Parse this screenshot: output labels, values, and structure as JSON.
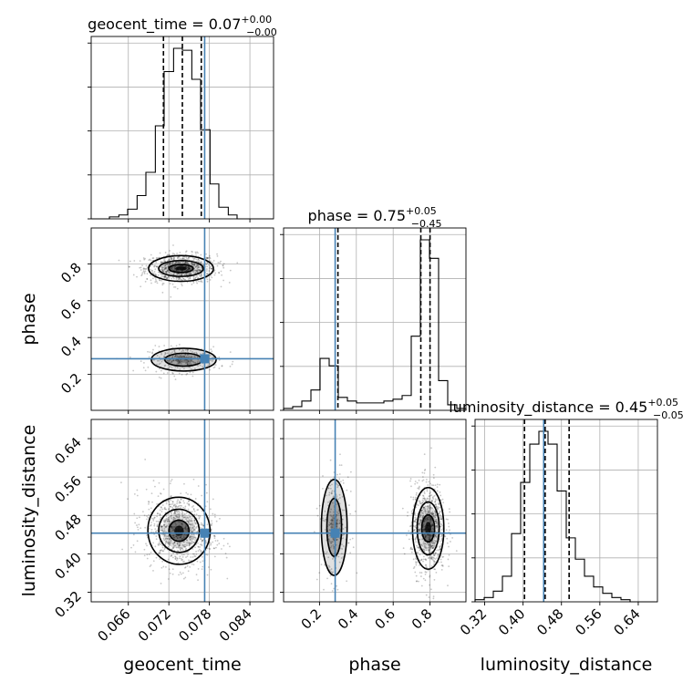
{
  "chart_data": {
    "type": "corner",
    "parameters": [
      {
        "name": "geocent_time",
        "title_main": "geocent_time = 0.07",
        "title_plus": "+0.00",
        "title_minus": "−0.00",
        "range": [
          0.0605,
          0.0875
        ],
        "ticks": [
          0.066,
          0.072,
          0.078,
          0.084
        ],
        "tick_labels": [
          "0.066",
          "0.072",
          "0.078",
          "0.084"
        ],
        "truth": 0.0773,
        "quantiles": [
          0.0712,
          0.074,
          0.0768
        ]
      },
      {
        "name": "phase",
        "title_main": "phase = 0.75",
        "title_plus": "+0.05",
        "title_minus": "−0.45",
        "range": [
          0.005,
          0.995
        ],
        "ticks": [
          0.2,
          0.4,
          0.6,
          0.8
        ],
        "tick_labels": [
          "0.2",
          "0.4",
          "0.6",
          "0.8"
        ],
        "truth": 0.285,
        "quantiles": [
          0.3,
          0.75,
          0.8
        ]
      },
      {
        "name": "luminosity_distance",
        "title_main": "luminosity_distance = 0.45",
        "title_plus": "+0.05",
        "title_minus": "−0.05",
        "range": [
          0.3,
          0.68
        ],
        "ticks": [
          0.32,
          0.4,
          0.48,
          0.56,
          0.64
        ],
        "tick_labels": [
          "0.32",
          "0.40",
          "0.48",
          "0.56",
          "0.64"
        ],
        "truth": 0.443,
        "quantiles": [
          0.403,
          0.446,
          0.496
        ]
      }
    ],
    "histograms": [
      {
        "parameter": "geocent_time",
        "bin_edges": [
          0.0605,
          0.0619,
          0.0632,
          0.0646,
          0.0659,
          0.0673,
          0.0686,
          0.07,
          0.0713,
          0.0727,
          0.074,
          0.0754,
          0.0767,
          0.0781,
          0.0794,
          0.0808,
          0.0821,
          0.0835,
          0.0848,
          0.0862,
          0.0875
        ],
        "heights": [
          0,
          0,
          1,
          2,
          5,
          12,
          24,
          48,
          76,
          88,
          87,
          72,
          46,
          18,
          6,
          2,
          0,
          0,
          0,
          0
        ]
      },
      {
        "parameter": "phase",
        "bin_edges": [
          0.005,
          0.0545,
          0.104,
          0.1535,
          0.203,
          0.2525,
          0.302,
          0.3515,
          0.401,
          0.4505,
          0.5,
          0.5495,
          0.599,
          0.6485,
          0.698,
          0.7475,
          0.797,
          0.8465,
          0.896,
          0.9455,
          0.995
        ],
        "heights": [
          1,
          2,
          5,
          11,
          28,
          24,
          7,
          5,
          4,
          4,
          4,
          5,
          6,
          8,
          40,
          92,
          82,
          16,
          3,
          1
        ]
      },
      {
        "parameter": "luminosity_distance",
        "bin_edges": [
          0.3,
          0.319,
          0.338,
          0.357,
          0.376,
          0.395,
          0.414,
          0.433,
          0.452,
          0.471,
          0.49,
          0.509,
          0.528,
          0.547,
          0.566,
          0.585,
          0.604,
          0.623,
          0.642,
          0.661,
          0.68
        ],
        "heights": [
          1,
          2,
          5,
          12,
          32,
          56,
          74,
          80,
          74,
          52,
          30,
          20,
          12,
          7,
          4,
          2,
          1,
          0,
          0,
          0
        ]
      }
    ],
    "joint": [
      {
        "x": "geocent_time",
        "y": "phase",
        "modes": [
          {
            "cx": 0.0738,
            "cy": 0.775,
            "contours": [
              [
                0.0018,
                0.022
              ],
              [
                0.0033,
                0.043
              ],
              [
                0.0048,
                0.07
              ]
            ],
            "weight": 1.0
          },
          {
            "cx": 0.0742,
            "cy": 0.28,
            "contours": [
              [
                0.0028,
                0.035
              ],
              [
                0.0048,
                0.062
              ]
            ],
            "weight": 0.35
          }
        ]
      },
      {
        "x": "geocent_time",
        "y": "luminosity_distance",
        "modes": [
          {
            "cx": 0.0735,
            "cy": 0.448,
            "contours": [
              [
                0.0015,
                0.022
              ],
              [
                0.003,
                0.045
              ],
              [
                0.0046,
                0.07
              ]
            ],
            "weight": 1.0,
            "tilt": -0.15
          }
        ]
      },
      {
        "x": "phase",
        "y": "luminosity_distance",
        "modes": [
          {
            "cx": 0.79,
            "cy": 0.453,
            "contours": [
              [
                0.035,
                0.028
              ],
              [
                0.06,
                0.055
              ],
              [
                0.085,
                0.085
              ]
            ],
            "weight": 1.0
          },
          {
            "cx": 0.28,
            "cy": 0.455,
            "contours": [
              [
                0.04,
                0.06
              ],
              [
                0.07,
                0.1
              ]
            ],
            "weight": 0.3
          }
        ]
      }
    ],
    "truth_color": "#4682b4",
    "grid": true,
    "hist_y_tick_count": 4
  }
}
